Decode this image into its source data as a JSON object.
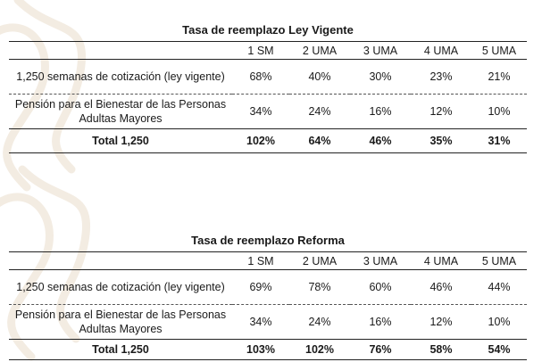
{
  "headers": [
    "1 SM",
    "2 UMA",
    "3 UMA",
    "4 UMA",
    "5 UMA"
  ],
  "tables": [
    {
      "title": "Tasa de reemplazo Ley Vigente",
      "rows": [
        {
          "label": "1,250 semanas de cotización (ley vigente)",
          "values": [
            "68%",
            "40%",
            "30%",
            "23%",
            "21%"
          ]
        },
        {
          "label": "Pensión para el Bienestar de las Personas Adultas Mayores",
          "values": [
            "34%",
            "24%",
            "16%",
            "12%",
            "10%"
          ]
        }
      ],
      "total": {
        "label": "Total 1,250",
        "values": [
          "102%",
          "64%",
          "46%",
          "35%",
          "31%"
        ]
      }
    },
    {
      "title": "Tasa de reemplazo Reforma",
      "rows": [
        {
          "label": "1,250 semanas de cotización (ley vigente)",
          "values": [
            "69%",
            "78%",
            "60%",
            "46%",
            "44%"
          ]
        },
        {
          "label": "Pensión para el Bienestar de las Personas Adultas Mayores",
          "values": [
            "34%",
            "24%",
            "16%",
            "12%",
            "10%"
          ]
        }
      ],
      "total": {
        "label": "Total 1,250",
        "values": [
          "103%",
          "102%",
          "76%",
          "58%",
          "54%"
        ]
      }
    }
  ],
  "colors": {
    "ornament": "#f3ece2",
    "rule": "#222222"
  }
}
